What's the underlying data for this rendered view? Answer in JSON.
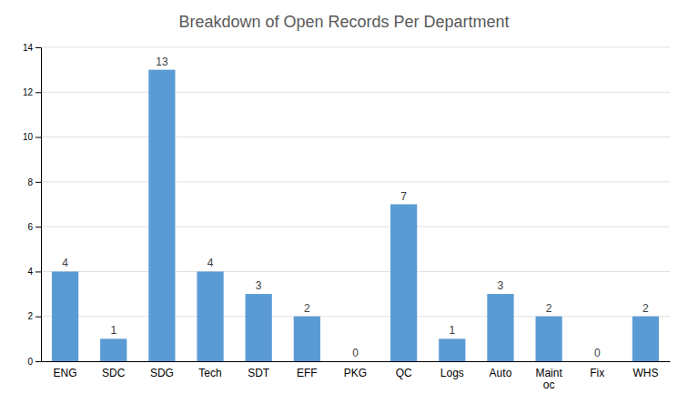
{
  "chart_data": {
    "type": "bar",
    "title": "Breakdown of Open Records Per Department",
    "categories": [
      "ENG",
      "SDC",
      "SDG",
      "Tech",
      "SDT",
      "EFF",
      "PKG",
      "QC",
      "Logs",
      "Auto",
      "Maint\noc",
      "Fix",
      "WHS"
    ],
    "values": [
      4,
      1,
      13,
      4,
      3,
      2,
      0,
      7,
      1,
      3,
      2,
      0,
      2
    ],
    "color": "#5B9BD5",
    "ylim": [
      0,
      14
    ],
    "yticks": [
      0,
      2,
      4,
      6,
      8,
      10,
      12,
      14
    ],
    "grid": true,
    "data_labels": true
  }
}
